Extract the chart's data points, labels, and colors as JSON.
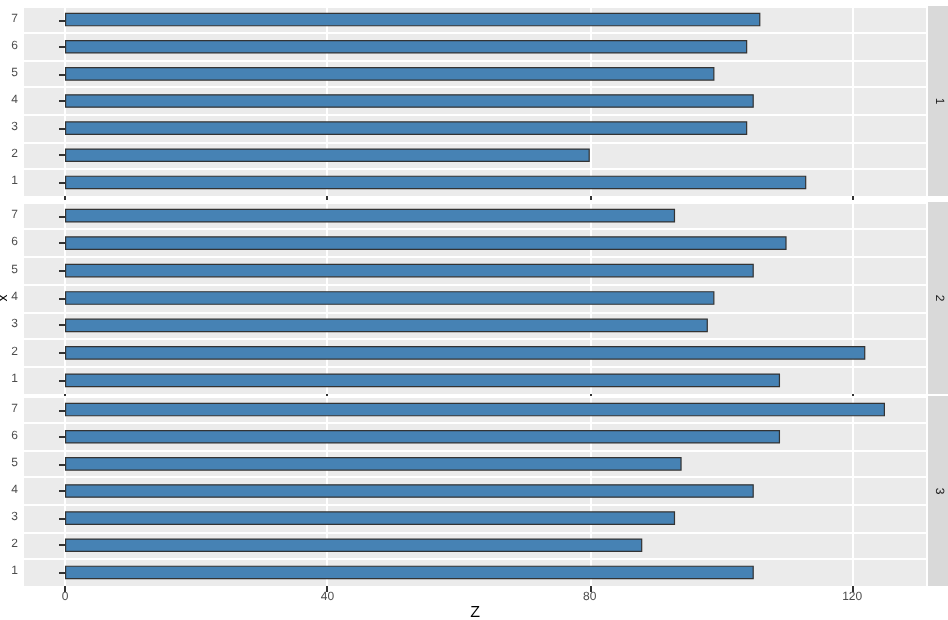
{
  "chart_data": [
    {
      "type": "bar",
      "orientation": "horizontal",
      "title": "1",
      "categories": [
        "7",
        "6",
        "5",
        "4",
        "3",
        "2",
        "1"
      ],
      "values": [
        106,
        104,
        99,
        105,
        104,
        80,
        113
      ],
      "color": "#4682b4",
      "xlim": [
        -6.25,
        131.25
      ],
      "xticks": [
        0,
        40,
        80,
        120
      ],
      "grid": true,
      "tick_labels": "y"
    },
    {
      "type": "bar",
      "orientation": "horizontal",
      "title": "2",
      "ylabel": "x",
      "categories": [
        "7",
        "6",
        "5",
        "4",
        "3",
        "2",
        "1"
      ],
      "values": [
        93,
        110,
        105,
        99,
        98,
        122,
        109
      ],
      "color": "#4682b4",
      "xlim": [
        -6.25,
        131.25
      ],
      "xticks": [
        0,
        40,
        80,
        120
      ],
      "grid": true,
      "tick_labels": "y"
    },
    {
      "type": "bar",
      "orientation": "horizontal",
      "title": "3",
      "xlabel": "Z",
      "categories": [
        "7",
        "6",
        "5",
        "4",
        "3",
        "2",
        "1"
      ],
      "values": [
        125,
        109,
        94,
        105,
        93,
        88,
        105
      ],
      "color": "#4682b4",
      "xlim": [
        -6.25,
        131.25
      ],
      "xticks": [
        0,
        40,
        80,
        120
      ],
      "grid": true
    }
  ]
}
